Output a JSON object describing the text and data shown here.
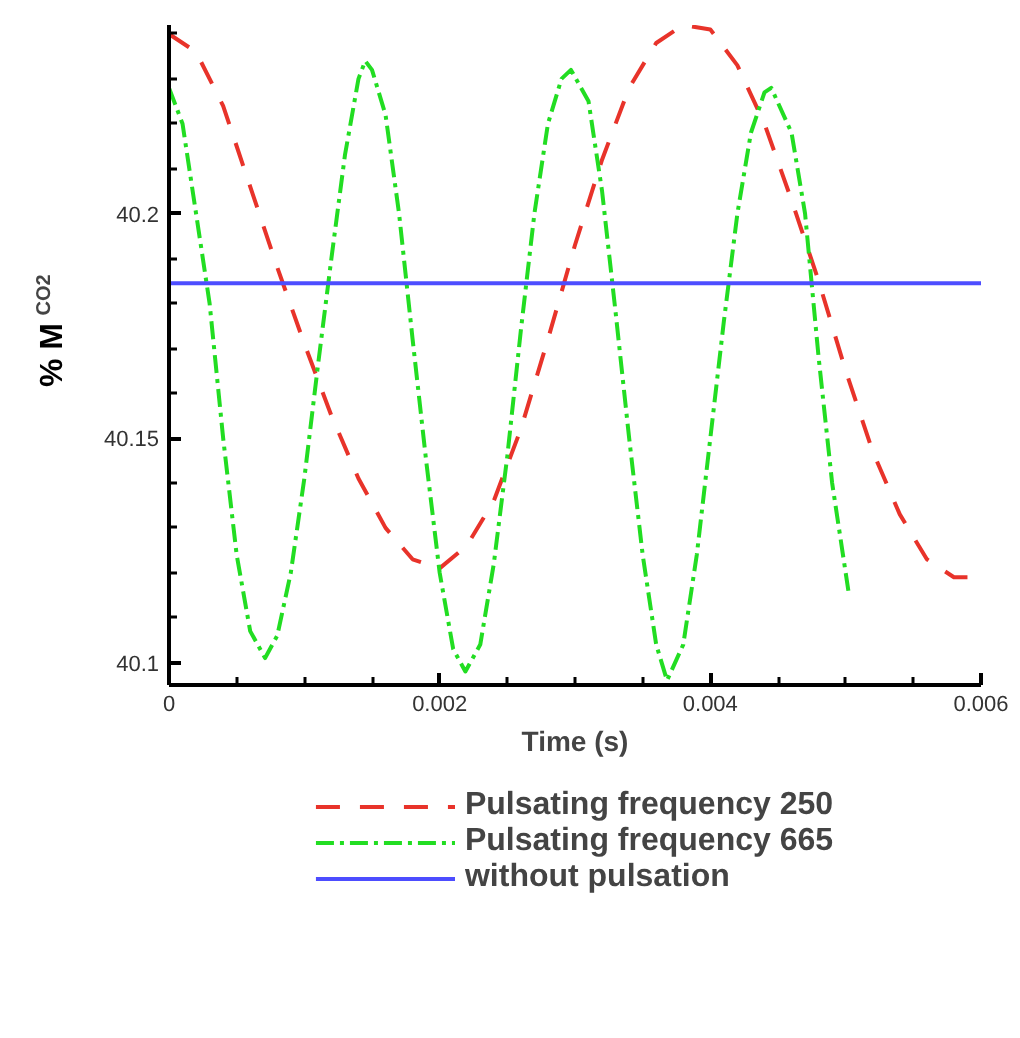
{
  "chart_data": {
    "type": "line",
    "xlabel": "Time (s)",
    "ylabel": "% M$_{CO2}$",
    "xlim": [
      0,
      0.006
    ],
    "ylim": [
      40.095,
      40.242
    ],
    "xticks": [
      0,
      {
        "value": 0.0005,
        "label": null
      },
      {
        "value": 0.001,
        "label": null
      },
      {
        "value": 0.0015,
        "label": null
      },
      0.002,
      {
        "value": 0.0025,
        "label": null
      },
      {
        "value": 0.003,
        "label": null
      },
      {
        "value": 0.0035,
        "label": null
      },
      0.004,
      {
        "value": 0.0045,
        "label": null
      },
      {
        "value": 0.005,
        "label": null
      },
      {
        "value": 0.0055,
        "label": null
      },
      0.006
    ],
    "yticks": [
      40.1,
      {
        "value": 40.11,
        "label": null
      },
      {
        "value": 40.12,
        "label": null
      },
      {
        "value": 40.13,
        "label": null
      },
      {
        "value": 40.14,
        "label": null
      },
      40.15,
      {
        "value": 40.16,
        "label": null
      },
      {
        "value": 40.17,
        "label": null
      },
      {
        "value": 40.18,
        "label": null
      },
      {
        "value": 40.19,
        "label": null
      },
      40.2,
      {
        "value": 40.21,
        "label": null
      },
      {
        "value": 40.22,
        "label": null
      },
      {
        "value": 40.23,
        "label": null
      },
      {
        "value": 40.24,
        "label": null
      }
    ],
    "grid": false,
    "legend": "bottom",
    "series": [
      {
        "name": "Pulsating frequency 250",
        "color": "#e8332a",
        "line_style": "dashed",
        "x": [
          0,
          0.0002,
          0.0004,
          0.0006,
          0.0008,
          0.001,
          0.0012,
          0.0014,
          0.0016,
          0.0018,
          0.002,
          0.0022,
          0.0024,
          0.0026,
          0.0028,
          0.003,
          0.0032,
          0.0034,
          0.0036,
          0.0038,
          0.004,
          0.0042,
          0.0044,
          0.0046,
          0.0048,
          0.005,
          0.0052,
          0.0054,
          0.0056,
          0.0058,
          0.006
        ],
        "values": [
          40.24,
          40.236,
          40.224,
          40.206,
          40.188,
          40.171,
          40.155,
          40.141,
          40.13,
          40.123,
          40.121,
          40.126,
          40.136,
          40.152,
          40.172,
          40.193,
          40.212,
          40.228,
          40.238,
          40.242,
          40.241,
          40.233,
          40.22,
          40.203,
          40.185,
          40.165,
          40.147,
          40.133,
          40.123,
          40.119,
          40.119
        ]
      },
      {
        "name": "Pulsating frequency 665",
        "color": "#22dd22",
        "line_style": "dashdot",
        "x": [
          0,
          0.0001,
          0.0002,
          0.0003,
          0.0004,
          0.0005,
          0.0006,
          0.00071,
          0.0008,
          0.0009,
          0.001,
          0.0011,
          0.0012,
          0.0013,
          0.0014,
          0.00145,
          0.0015,
          0.0016,
          0.0017,
          0.0018,
          0.0019,
          0.002,
          0.0021,
          0.00219,
          0.0023,
          0.0024,
          0.0025,
          0.0026,
          0.0027,
          0.0028,
          0.0029,
          0.00297,
          0.0031,
          0.0032,
          0.0033,
          0.0034,
          0.0035,
          0.0036,
          0.00368,
          0.0038,
          0.0039,
          0.004,
          0.0041,
          0.0042,
          0.0043,
          0.0044,
          0.00445,
          0.0046,
          0.0047,
          0.0048,
          0.0049,
          0.00502
        ],
        "values": [
          40.228,
          40.22,
          40.2,
          40.18,
          40.15,
          40.124,
          40.107,
          40.101,
          40.106,
          40.12,
          40.141,
          40.166,
          40.19,
          40.213,
          40.23,
          40.234,
          40.232,
          40.222,
          40.2,
          40.172,
          40.145,
          40.12,
          40.103,
          40.098,
          40.104,
          40.122,
          40.146,
          40.174,
          40.2,
          40.22,
          40.23,
          40.232,
          40.225,
          40.205,
          40.178,
          40.15,
          40.124,
          40.104,
          40.096,
          40.104,
          40.124,
          40.15,
          40.176,
          40.2,
          40.218,
          40.227,
          40.228,
          40.218,
          40.2,
          40.168,
          40.14,
          40.116
        ]
      },
      {
        "name": "without pulsation",
        "color": "#4d4dff",
        "line_style": "solid",
        "x": [
          0,
          0.006
        ],
        "values": [
          40.1845,
          40.1845
        ]
      }
    ]
  }
}
